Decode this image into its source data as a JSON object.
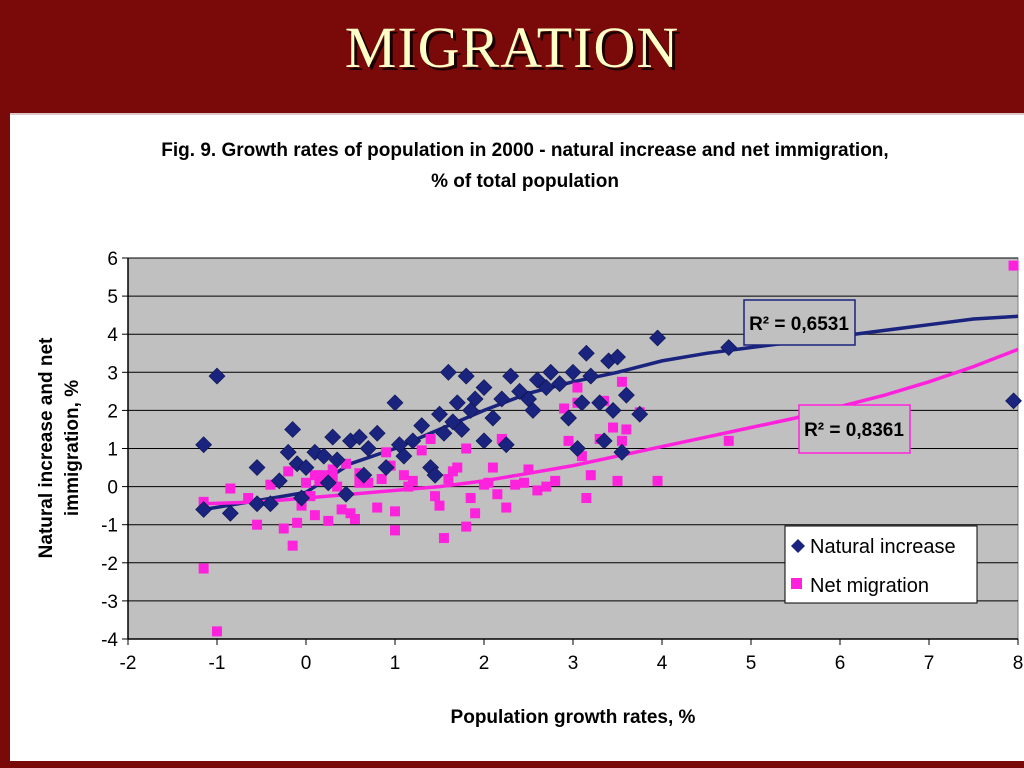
{
  "slide": {
    "title": "MIGRATION"
  },
  "chart_data": {
    "type": "scatter",
    "title_line1": "Fig. 9.  Growth rates of population in 2000 - natural increase and net immigration,",
    "title_line2": "% of total population",
    "xlabel": "Population growth rates, %",
    "ylabel_line1": "Natural increase and net",
    "ylabel_line2": "immigration, %",
    "xlim": [
      -2,
      8
    ],
    "ylim": [
      -4,
      6
    ],
    "x_ticks": [
      "-2",
      "-1",
      "0",
      "1",
      "2",
      "3",
      "4",
      "5",
      "6",
      "7",
      "8"
    ],
    "y_ticks": [
      "6",
      "5",
      "4",
      "3",
      "2",
      "1",
      "0",
      "-1",
      "-2",
      "-3",
      "-4"
    ],
    "grid": "horizontal",
    "plot_background": "#c0c0c0",
    "legend": {
      "position": "bottom-right",
      "items": [
        "Natural increase",
        "Net migration"
      ]
    },
    "series": [
      {
        "name": "Natural increase",
        "marker": "diamond",
        "color": "#1a237e",
        "trend_label": "R² = 0,6531",
        "trend": [
          [
            -1.15,
            -0.6
          ],
          [
            -0.5,
            -0.35
          ],
          [
            0,
            -0.15
          ],
          [
            0.5,
            0.6
          ],
          [
            1,
            1.0
          ],
          [
            1.5,
            1.5
          ],
          [
            2,
            2.0
          ],
          [
            2.5,
            2.45
          ],
          [
            3,
            2.75
          ],
          [
            3.5,
            3.0
          ],
          [
            4,
            3.3
          ],
          [
            4.5,
            3.5
          ],
          [
            5,
            3.65
          ],
          [
            5.5,
            3.8
          ],
          [
            6,
            3.95
          ],
          [
            6.5,
            4.1
          ],
          [
            7,
            4.25
          ],
          [
            7.5,
            4.4
          ],
          [
            8,
            4.47
          ]
        ],
        "points": [
          [
            -1.15,
            1.1
          ],
          [
            -1.0,
            2.9
          ],
          [
            -1.15,
            -0.6
          ],
          [
            -0.85,
            -0.7
          ],
          [
            -0.55,
            0.5
          ],
          [
            -0.55,
            -0.45
          ],
          [
            -0.4,
            -0.45
          ],
          [
            -0.3,
            0.15
          ],
          [
            -0.2,
            0.9
          ],
          [
            -0.15,
            1.5
          ],
          [
            -0.1,
            0.6
          ],
          [
            -0.05,
            -0.3
          ],
          [
            0,
            0.5
          ],
          [
            0.1,
            0.9
          ],
          [
            0.2,
            0.8
          ],
          [
            0.3,
            1.3
          ],
          [
            0.35,
            0.7
          ],
          [
            0.5,
            1.2
          ],
          [
            0.6,
            1.3
          ],
          [
            0.7,
            1.0
          ],
          [
            0.8,
            1.4
          ],
          [
            0.9,
            0.5
          ],
          [
            1,
            2.2
          ],
          [
            1.05,
            1.1
          ],
          [
            1.1,
            0.8
          ],
          [
            1.2,
            1.2
          ],
          [
            1.3,
            1.6
          ],
          [
            1.4,
            0.5
          ],
          [
            1.5,
            1.9
          ],
          [
            1.55,
            1.4
          ],
          [
            1.6,
            3.0
          ],
          [
            1.65,
            1.7
          ],
          [
            1.7,
            2.2
          ],
          [
            1.75,
            1.5
          ],
          [
            1.8,
            2.9
          ],
          [
            1.85,
            2.0
          ],
          [
            1.9,
            2.3
          ],
          [
            2.0,
            2.6
          ],
          [
            2.1,
            1.8
          ],
          [
            2.2,
            2.3
          ],
          [
            2.25,
            1.1
          ],
          [
            2.3,
            2.9
          ],
          [
            2.4,
            2.5
          ],
          [
            2.5,
            2.3
          ],
          [
            2.6,
            2.8
          ],
          [
            2.7,
            2.6
          ],
          [
            2.75,
            3.0
          ],
          [
            2.85,
            2.7
          ],
          [
            2.95,
            1.8
          ],
          [
            3.0,
            3.0
          ],
          [
            3.05,
            1.0
          ],
          [
            3.1,
            2.2
          ],
          [
            3.15,
            3.5
          ],
          [
            3.2,
            2.9
          ],
          [
            3.3,
            2.2
          ],
          [
            3.35,
            1.2
          ],
          [
            3.4,
            3.3
          ],
          [
            3.45,
            2.0
          ],
          [
            3.5,
            3.4
          ],
          [
            3.55,
            0.9
          ],
          [
            3.6,
            2.4
          ],
          [
            3.75,
            1.9
          ],
          [
            3.95,
            3.9
          ],
          [
            4.75,
            3.65
          ],
          [
            7.95,
            2.25
          ],
          [
            0.25,
            0.1
          ],
          [
            0.45,
            -0.2
          ],
          [
            0.65,
            0.3
          ],
          [
            1.45,
            0.3
          ],
          [
            2.0,
            1.2
          ],
          [
            2.55,
            2.0
          ]
        ]
      },
      {
        "name": "Net migration",
        "marker": "square",
        "color": "#ff22dd",
        "trend_label": "R² = 0,8361",
        "trend": [
          [
            -1.15,
            -0.45
          ],
          [
            -0.5,
            -0.4
          ],
          [
            0,
            -0.3
          ],
          [
            0.5,
            -0.2
          ],
          [
            1,
            -0.1
          ],
          [
            1.5,
            0.0
          ],
          [
            2,
            0.15
          ],
          [
            2.5,
            0.35
          ],
          [
            3,
            0.55
          ],
          [
            3.5,
            0.8
          ],
          [
            4,
            1.05
          ],
          [
            4.5,
            1.3
          ],
          [
            5,
            1.55
          ],
          [
            5.5,
            1.8
          ],
          [
            6,
            2.1
          ],
          [
            6.5,
            2.4
          ],
          [
            7,
            2.75
          ],
          [
            7.5,
            3.15
          ],
          [
            8,
            3.6
          ]
        ],
        "points": [
          [
            -1.15,
            -2.15
          ],
          [
            -1.15,
            -0.4
          ],
          [
            -1.0,
            -3.8
          ],
          [
            -0.85,
            -0.05
          ],
          [
            -0.65,
            -0.3
          ],
          [
            -0.55,
            -1.0
          ],
          [
            -0.4,
            0.05
          ],
          [
            -0.25,
            -1.1
          ],
          [
            -0.2,
            0.4
          ],
          [
            -0.15,
            -1.55
          ],
          [
            -0.1,
            -0.95
          ],
          [
            -0.05,
            -0.5
          ],
          [
            0,
            0.1
          ],
          [
            0.05,
            -0.25
          ],
          [
            0.1,
            -0.75
          ],
          [
            0.15,
            0.15
          ],
          [
            0.2,
            0.3
          ],
          [
            0.25,
            -0.9
          ],
          [
            0.3,
            0.45
          ],
          [
            0.35,
            0.0
          ],
          [
            0.4,
            -0.6
          ],
          [
            0.45,
            0.6
          ],
          [
            0.5,
            -0.7
          ],
          [
            0.55,
            -0.85
          ],
          [
            0.6,
            0.35
          ],
          [
            0.7,
            0.1
          ],
          [
            0.8,
            -0.55
          ],
          [
            0.9,
            0.9
          ],
          [
            0.95,
            0.55
          ],
          [
            1.0,
            -1.15
          ],
          [
            1.0,
            -0.65
          ],
          [
            1.1,
            0.3
          ],
          [
            1.2,
            0.15
          ],
          [
            1.3,
            0.95
          ],
          [
            1.4,
            1.25
          ],
          [
            1.45,
            -0.25
          ],
          [
            1.5,
            -0.5
          ],
          [
            1.55,
            -1.35
          ],
          [
            1.6,
            0.2
          ],
          [
            1.7,
            0.5
          ],
          [
            1.8,
            1.0
          ],
          [
            1.8,
            -1.05
          ],
          [
            1.85,
            -0.3
          ],
          [
            1.9,
            -0.7
          ],
          [
            2.0,
            0.05
          ],
          [
            2.1,
            0.5
          ],
          [
            2.15,
            -0.2
          ],
          [
            2.2,
            1.25
          ],
          [
            2.25,
            -0.55
          ],
          [
            2.35,
            0.05
          ],
          [
            2.5,
            0.45
          ],
          [
            2.6,
            -0.1
          ],
          [
            2.7,
            0.0
          ],
          [
            2.8,
            0.15
          ],
          [
            2.9,
            2.05
          ],
          [
            2.95,
            1.2
          ],
          [
            3.05,
            2.6
          ],
          [
            3.05,
            2.2
          ],
          [
            3.1,
            0.8
          ],
          [
            3.15,
            -0.3
          ],
          [
            3.2,
            0.3
          ],
          [
            3.3,
            1.25
          ],
          [
            3.35,
            2.25
          ],
          [
            3.45,
            1.55
          ],
          [
            3.5,
            0.15
          ],
          [
            3.55,
            2.75
          ],
          [
            3.55,
            1.2
          ],
          [
            3.6,
            1.5
          ],
          [
            3.75,
            1.95
          ],
          [
            3.95,
            0.15
          ],
          [
            4.75,
            1.2
          ],
          [
            7.95,
            5.8
          ],
          [
            0.1,
            0.3
          ],
          [
            0.3,
            0.2
          ],
          [
            0.6,
            0.1
          ],
          [
            0.85,
            0.2
          ],
          [
            1.15,
            0.0
          ],
          [
            1.65,
            0.4
          ],
          [
            2.05,
            0.1
          ],
          [
            2.45,
            0.1
          ]
        ]
      }
    ]
  }
}
